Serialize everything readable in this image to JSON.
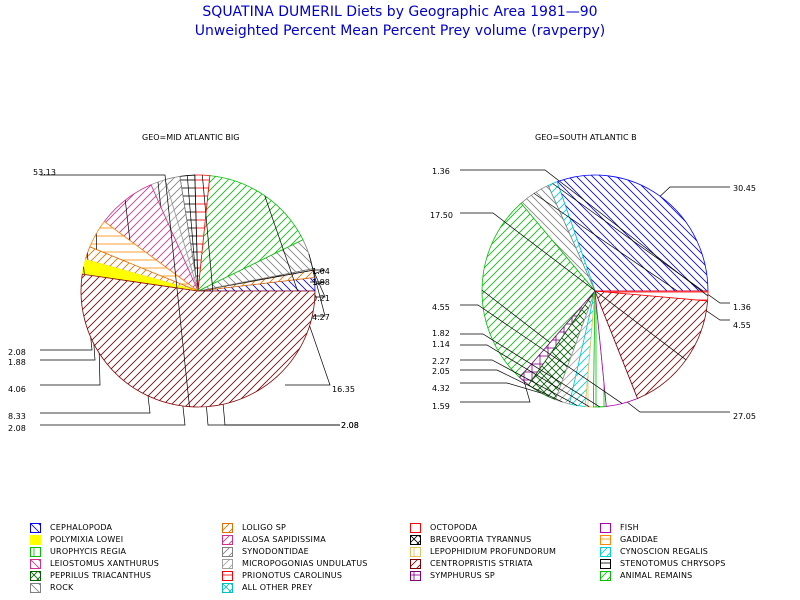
{
  "title": "SQUATINA DUMERIL Diets by Geographic Area 1981—90",
  "subtitle": "Unweighted Percent Mean Percent Prey  volume (ravperpy)",
  "chart_data": [
    {
      "type": "pie",
      "title": "GEO=MID ATLANTIC BIG",
      "slices": [
        {
          "category": "CEPHALOPODA",
          "value": 1.88,
          "label": "1.88"
        },
        {
          "category": "LOLIGO SP",
          "value": 1.04,
          "label": "1.04"
        },
        {
          "category": "STENOTOMUS CHRYSOPS",
          "value": 0.21,
          "label": "0.21"
        },
        {
          "category": "ROCK",
          "value": 4.27,
          "label": "4.27"
        },
        {
          "category": "ANIMAL REMAINS",
          "value": 16.35,
          "label": "16.35"
        },
        {
          "category": "PRIONOTUS CAROLINUS",
          "value": 2.08,
          "label": "2.08"
        },
        {
          "category": "STENOTOMUS CHRYSOPS",
          "value": 2.08,
          "label": "2.08"
        },
        {
          "category": "SYNODONTIDAE",
          "value": 2.08,
          "label": "2.08"
        },
        {
          "category": "MICROPOGONIAS UNDULATUS",
          "value": 2.08,
          "label": "2.08"
        },
        {
          "category": "ALOSA SAPIDISSIMA",
          "value": 8.33,
          "label": "8.33"
        },
        {
          "category": "GADIDAE",
          "value": 4.06,
          "label": "4.06"
        },
        {
          "category": "LOLIGO SP",
          "value": 1.88,
          "label": "1.88"
        },
        {
          "category": "POLYMIXIA LOWEI",
          "value": 2.08,
          "label": "2.08"
        },
        {
          "category": "CENTROPRISTIS STRIATA",
          "value": 53.13,
          "label": "53.13"
        }
      ]
    },
    {
      "type": "pie",
      "title": "GEO=SOUTH ATLANTIC B",
      "slices": [
        {
          "category": "CEPHALOPODA",
          "value": 30.45,
          "label": "30.45"
        },
        {
          "category": "CYNOSCION REGALIS",
          "value": 1.36,
          "label": "1.36"
        },
        {
          "category": "ROCK",
          "value": 4.55,
          "label": "4.55"
        },
        {
          "category": "ANIMAL REMAINS",
          "value": 27.05,
          "label": "27.05"
        },
        {
          "category": "SYMPHURUS SP",
          "value": 1.59,
          "label": "1.59"
        },
        {
          "category": "PEPRILUS TRIACANTHUS",
          "value": 4.32,
          "label": "4.32"
        },
        {
          "category": "MICROPOGONIAS UNDULATUS",
          "value": 2.05,
          "label": "2.05"
        },
        {
          "category": "CYNOSCION REGALIS",
          "value": 2.27,
          "label": "2.27"
        },
        {
          "category": "LEPOPHIDIUM PROFUNDORUM",
          "value": 1.14,
          "label": "1.14"
        },
        {
          "category": "UROPHYCIS REGIA",
          "value": 1.82,
          "label": "1.82"
        },
        {
          "category": "FISH",
          "value": 4.55,
          "label": "4.55"
        },
        {
          "category": "CENTROPRISTIS STRIATA",
          "value": 17.5,
          "label": "17.50"
        },
        {
          "category": "PRIONOTUS CAROLINUS",
          "value": 1.36,
          "label": "1.36"
        }
      ]
    }
  ],
  "legend": [
    {
      "name": "CEPHALOPODA",
      "color": "#0000ff",
      "pattern": "hatch-rev"
    },
    {
      "name": "LOLIGO SP",
      "color": "#e07000",
      "pattern": "hatch-fwd"
    },
    {
      "name": "OCTOPODA",
      "color": "#ff0000",
      "pattern": "empty"
    },
    {
      "name": "FISH",
      "color": "#b000b0",
      "pattern": "empty"
    },
    {
      "name": "POLYMIXIA LOWEI",
      "color": "#ffff00",
      "pattern": "solid"
    },
    {
      "name": "ALOSA SAPIDISSIMA",
      "color": "#d0308a",
      "pattern": "hatch-fwd"
    },
    {
      "name": "BREVOORTIA TYRANNUS",
      "color": "#000000",
      "pattern": "cross-diag"
    },
    {
      "name": "GADIDAE",
      "color": "#ff8800",
      "pattern": "horiz"
    },
    {
      "name": "UROPHYCIS REGIA",
      "color": "#00c000",
      "pattern": "vert"
    },
    {
      "name": "SYNODONTIDAE",
      "color": "#808080",
      "pattern": "hatch-fwd"
    },
    {
      "name": "LEPOPHIDIUM PROFUNDORUM",
      "color": "#e8c060",
      "pattern": "vert"
    },
    {
      "name": "CYNOSCION REGALIS",
      "color": "#00d0d0",
      "pattern": "hatch-fwd"
    },
    {
      "name": "LEIOSTOMUS XANTHURUS",
      "color": "#d0308a",
      "pattern": "hatch-rev"
    },
    {
      "name": "MICROPOGONIAS UNDULATUS",
      "color": "#a0a0a0",
      "pattern": "hatch-fwd"
    },
    {
      "name": "CENTROPRISTIS STRIATA",
      "color": "#800000",
      "pattern": "hatch-fwd"
    },
    {
      "name": "STENOTOMUS CHRYSOPS",
      "color": "#000000",
      "pattern": "horiz"
    },
    {
      "name": "PEPRILUS TRIACANTHUS",
      "color": "#006000",
      "pattern": "cross-diag"
    },
    {
      "name": "PRIONOTUS CAROLINUS",
      "color": "#ff0000",
      "pattern": "horiz"
    },
    {
      "name": "SYMPHURUS SP",
      "color": "#800080",
      "pattern": "grid"
    },
    {
      "name": "ANIMAL REMAINS",
      "color": "#00c000",
      "pattern": "hatch-fwd"
    },
    {
      "name": "ROCK",
      "color": "#808080",
      "pattern": "hatch-rev"
    },
    {
      "name": "ALL OTHER PREY",
      "color": "#00c0c0",
      "pattern": "cross-diag"
    }
  ]
}
